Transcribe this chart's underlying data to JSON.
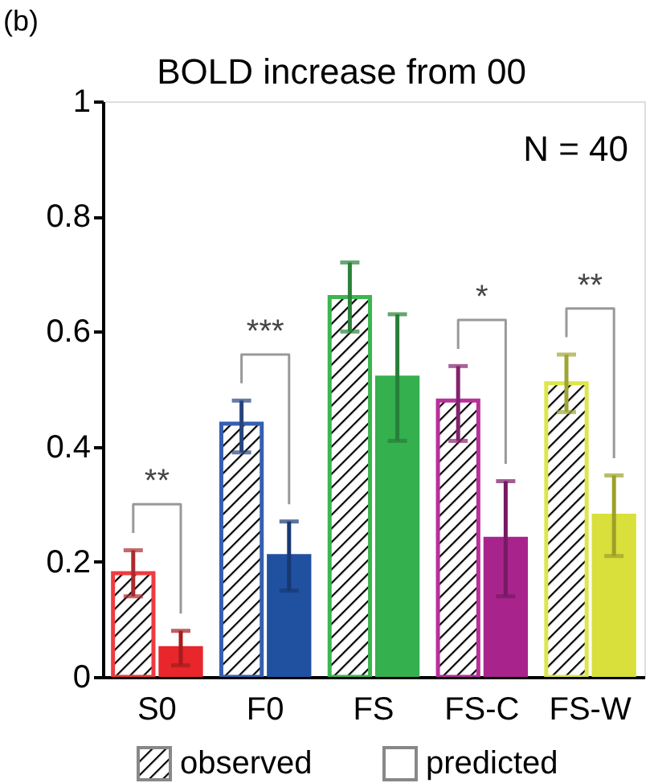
{
  "chart_data": {
    "type": "bar",
    "title": "BOLD increase from 00",
    "categories": [
      "S0",
      "F0",
      "FS",
      "FS-C",
      "FS-W"
    ],
    "series": [
      {
        "name": "observed",
        "colors": [
          "#ef3b3f",
          "#3560b0",
          "#3db550",
          "#b8309a",
          "#dde64a"
        ],
        "values": [
          0.18,
          0.44,
          0.66,
          0.48,
          0.51
        ],
        "errors": [
          [
            0.14,
            0.22
          ],
          [
            0.39,
            0.48
          ],
          [
            0.6,
            0.72
          ],
          [
            0.41,
            0.54
          ],
          [
            0.46,
            0.56
          ]
        ]
      },
      {
        "name": "predicted",
        "colors": [
          "#e8262b",
          "#2050a0",
          "#35b04f",
          "#a8248c",
          "#d9df3b"
        ],
        "values": [
          0.05,
          0.21,
          0.52,
          0.24,
          0.28
        ],
        "errors": [
          [
            0.02,
            0.08
          ],
          [
            0.15,
            0.27
          ],
          [
            0.41,
            0.63
          ],
          [
            0.14,
            0.34
          ],
          [
            0.21,
            0.35
          ]
        ]
      }
    ],
    "ylim": [
      0,
      1
    ],
    "yticks": [
      0,
      0.2,
      0.4,
      0.6,
      0.8,
      1
    ],
    "legend": "bottom",
    "grid": false,
    "annotations": [
      "(b)",
      "N = 40",
      "**",
      "***",
      "*",
      "**"
    ]
  }
}
